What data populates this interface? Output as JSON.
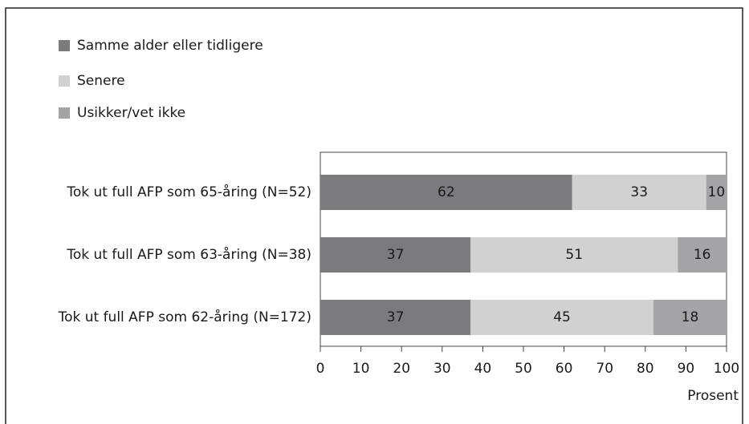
{
  "chart_data": {
    "type": "stacked_bar_horizontal",
    "categories": [
      "Tok ut full AFP som 65-åring (N=52)",
      "Tok ut full AFP som 63-åring (N=38)",
      "Tok ut full AFP som 62-åring (N=172)"
    ],
    "series": [
      {
        "name": "Samme alder eller tidligere",
        "color": "#7b7b7d",
        "values": [
          62,
          37,
          37
        ]
      },
      {
        "name": "Senere",
        "color": "#d1d1d1",
        "values": [
          33,
          51,
          45
        ]
      },
      {
        "name": "Usikker/vet ikke",
        "color": "#a4a4a6",
        "values": [
          10,
          16,
          18
        ]
      }
    ],
    "xlim": [
      0,
      100
    ],
    "xticks": [
      0,
      10,
      20,
      30,
      40,
      50,
      60,
      70,
      80,
      90,
      100
    ],
    "xlabel": "Prosent",
    "legend": "top-left"
  }
}
